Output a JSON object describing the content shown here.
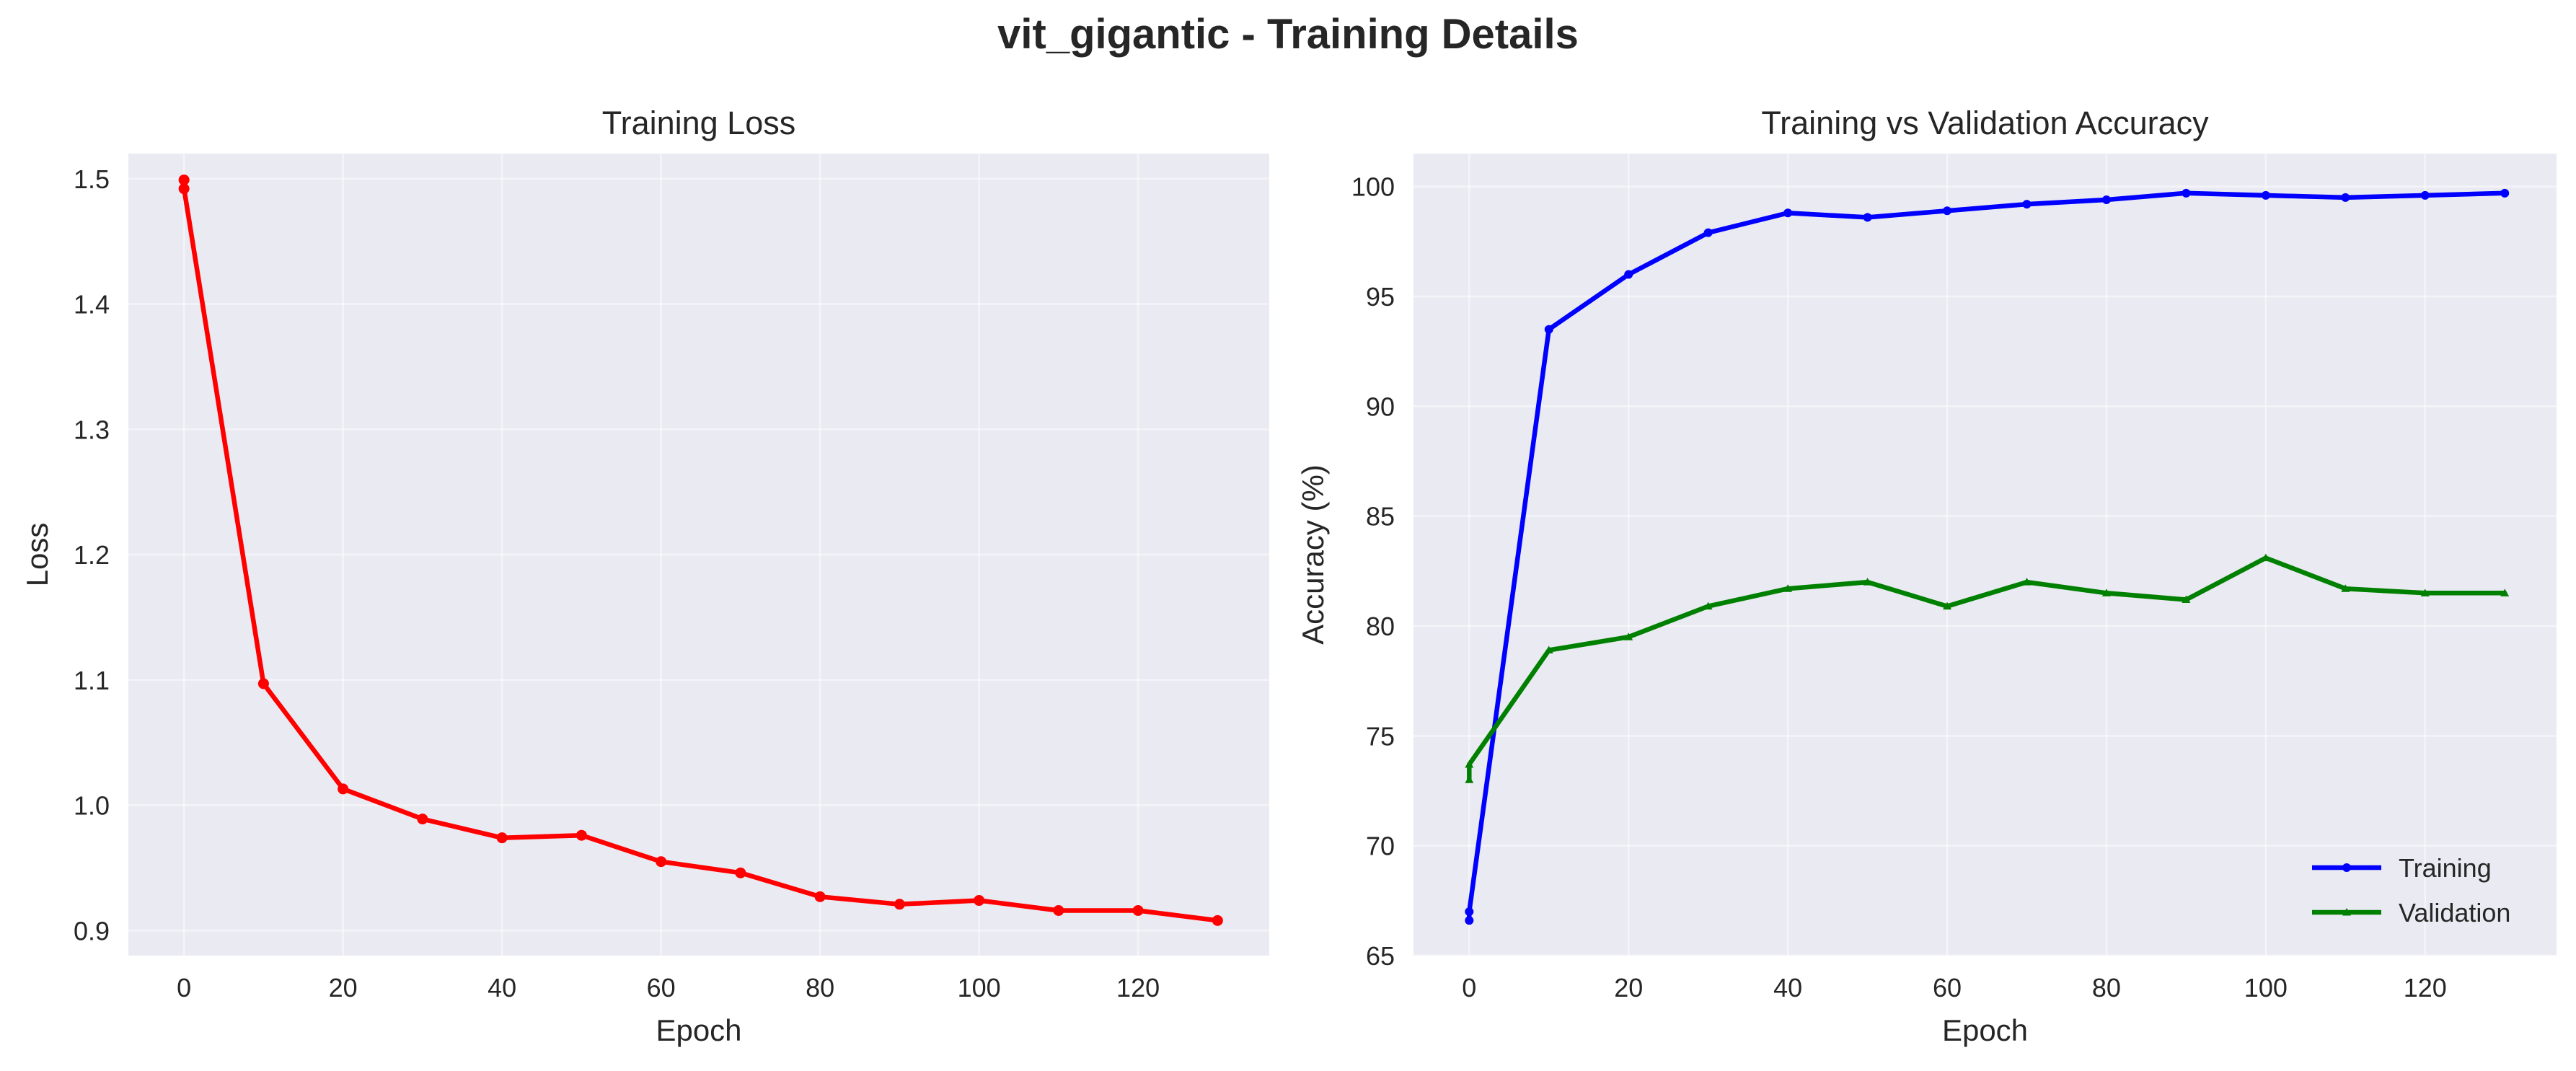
{
  "figure": {
    "title": "vit_gigantic - Training Details"
  },
  "chart_data": [
    {
      "type": "line",
      "title": "Training Loss",
      "xlabel": "Epoch",
      "ylabel": "Loss",
      "xlim": [
        -7,
        136.5
      ],
      "ylim": [
        0.88,
        1.52
      ],
      "xticks": [
        0,
        20,
        40,
        60,
        80,
        100,
        120
      ],
      "yticks": [
        0.9,
        1.0,
        1.1,
        1.2,
        1.3,
        1.4,
        1.5
      ],
      "ytick_labels": [
        "0.9",
        "1.0",
        "1.1",
        "1.2",
        "1.3",
        "1.4",
        "1.5"
      ],
      "grid": true,
      "series": [
        {
          "color": "#ff0000",
          "marker": "circle",
          "x": [
            0,
            0,
            10,
            20,
            30,
            40,
            50,
            60,
            70,
            80,
            90,
            100,
            110,
            120,
            130
          ],
          "y": [
            1.499,
            1.492,
            1.097,
            1.013,
            0.989,
            0.974,
            0.976,
            0.955,
            0.946,
            0.927,
            0.921,
            0.924,
            0.916,
            0.916,
            0.908
          ]
        }
      ]
    },
    {
      "type": "line",
      "title": "Training vs Validation Accuracy",
      "xlabel": "Epoch",
      "ylabel": "Accuracy (%)",
      "xlim": [
        -7,
        136.5
      ],
      "ylim": [
        65,
        101.5
      ],
      "xticks": [
        0,
        20,
        40,
        60,
        80,
        100,
        120
      ],
      "yticks": [
        65,
        70,
        75,
        80,
        85,
        90,
        95,
        100
      ],
      "ytick_labels": [
        "65",
        "70",
        "75",
        "80",
        "85",
        "90",
        "95",
        "100"
      ],
      "grid": true,
      "legend_position": "lower-right",
      "series": [
        {
          "name": "Training",
          "color": "#0000ff",
          "marker": "circle",
          "x": [
            0,
            0,
            10,
            20,
            30,
            40,
            50,
            60,
            70,
            80,
            90,
            100,
            110,
            120,
            130
          ],
          "y": [
            66.6,
            67.0,
            93.5,
            96.0,
            97.9,
            98.8,
            98.6,
            98.9,
            99.2,
            99.4,
            99.7,
            99.6,
            99.5,
            99.6,
            99.7
          ]
        },
        {
          "name": "Validation",
          "color": "#008000",
          "marker": "triangle",
          "x": [
            0,
            0,
            10,
            20,
            30,
            40,
            50,
            60,
            70,
            80,
            90,
            100,
            110,
            120,
            130
          ],
          "y": [
            73.0,
            73.7,
            78.9,
            79.5,
            80.9,
            81.7,
            82.0,
            80.9,
            82.0,
            81.5,
            81.2,
            83.1,
            81.7,
            81.5,
            81.5
          ]
        }
      ]
    }
  ]
}
